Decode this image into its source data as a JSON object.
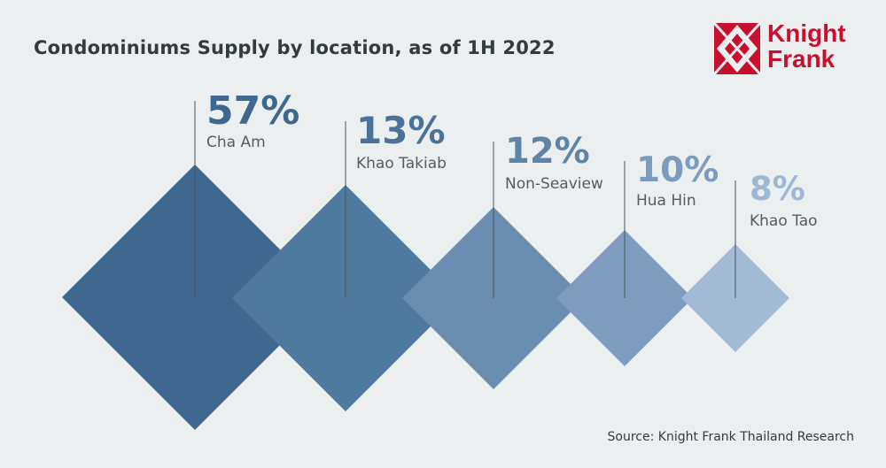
{
  "header": {
    "title": "Condominiums Supply by location, as of 1H 2022"
  },
  "logo": {
    "line1": "Knight",
    "line2": "Frank",
    "brand_color": "#c8102e"
  },
  "footer": {
    "source": "Source: Knight Frank Thailand Research"
  },
  "chart_data": {
    "type": "diamond",
    "title": "Condominiums Supply by location, as of 1H 2022",
    "unit": "%",
    "categories": [
      "Cha Am",
      "Khao Takiab",
      "Non-Seaview",
      "Hua Hin",
      "Khao Tao"
    ],
    "values": [
      57,
      13,
      12,
      10,
      8
    ],
    "value_labels": [
      "57%",
      "13%",
      "12%",
      "10%",
      "8%"
    ],
    "colors": [
      "#3f6890",
      "#4f7aa0",
      "#6a8db2",
      "#7e9cc0",
      "#a2bad6"
    ],
    "value_label_colors": [
      "#3d6890",
      "#4b7399",
      "#5f84aa",
      "#7c9bc0",
      "#9db7d6"
    ]
  }
}
